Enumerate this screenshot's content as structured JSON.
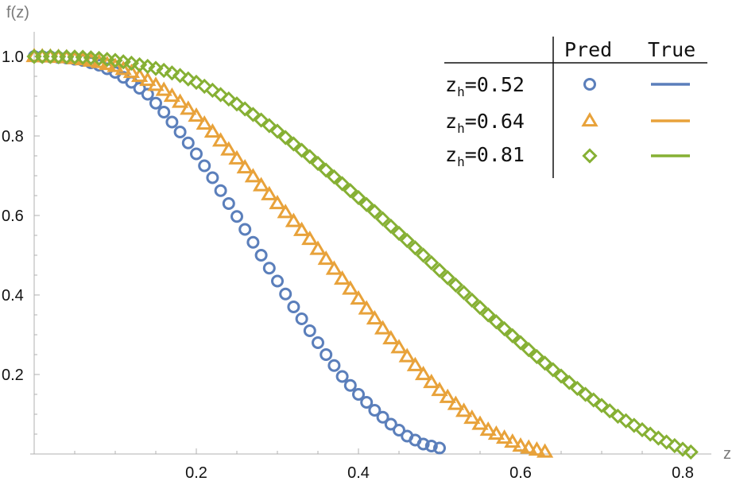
{
  "chart_data": {
    "type": "scatter",
    "xlabel": "z",
    "ylabel": "f(z)",
    "xlim": [
      0,
      0.82
    ],
    "ylim": [
      0,
      1.0
    ],
    "xticks": [
      0.2,
      0.4,
      0.6,
      0.8
    ],
    "xtick_labels": [
      "0.2",
      "0.4",
      "0.6",
      "0.8"
    ],
    "yticks": [
      0.2,
      0.4,
      0.6,
      0.8,
      1.0
    ],
    "ytick_labels": [
      "0.2",
      "0.4",
      "0.6",
      "0.8",
      "1.0"
    ],
    "grid": false,
    "legend": {
      "placement": "top-right",
      "header_pred": "Pred",
      "header_true": "True",
      "row_prefix": "z",
      "row_sub": "h",
      "rows": [
        "=0.52",
        "=0.64",
        "=0.81"
      ]
    },
    "series": [
      {
        "zh": 0.52,
        "marker": "circle",
        "color": "#5b7fbb",
        "x": [
          0.0,
          0.02,
          0.04,
          0.06,
          0.08,
          0.1,
          0.12,
          0.14,
          0.16,
          0.18,
          0.2,
          0.22,
          0.24,
          0.26,
          0.28,
          0.3,
          0.32,
          0.34,
          0.36,
          0.38,
          0.4,
          0.42,
          0.44,
          0.46,
          0.48,
          0.5
        ],
        "y": [
          1.0,
          0.999,
          0.996,
          0.99,
          0.978,
          0.96,
          0.935,
          0.905,
          0.86,
          0.81,
          0.755,
          0.695,
          0.63,
          0.565,
          0.5,
          0.435,
          0.37,
          0.31,
          0.25,
          0.195,
          0.15,
          0.11,
          0.075,
          0.045,
          0.025,
          0.015
        ]
      },
      {
        "zh": 0.64,
        "marker": "triangle",
        "color": "#e8a23a",
        "x": [
          0.0,
          0.02,
          0.04,
          0.06,
          0.08,
          0.1,
          0.12,
          0.14,
          0.16,
          0.18,
          0.2,
          0.22,
          0.24,
          0.26,
          0.28,
          0.3,
          0.32,
          0.34,
          0.36,
          0.38,
          0.4,
          0.42,
          0.44,
          0.46,
          0.48,
          0.5,
          0.52,
          0.54,
          0.56,
          0.58,
          0.6,
          0.62,
          0.63
        ],
        "y": [
          1.0,
          0.999,
          0.997,
          0.992,
          0.985,
          0.975,
          0.96,
          0.94,
          0.915,
          0.885,
          0.85,
          0.81,
          0.765,
          0.72,
          0.675,
          0.63,
          0.585,
          0.54,
          0.49,
          0.44,
          0.39,
          0.34,
          0.29,
          0.245,
          0.2,
          0.16,
          0.125,
          0.09,
          0.06,
          0.04,
          0.02,
          0.01,
          0.005
        ]
      },
      {
        "zh": 0.81,
        "marker": "diamond",
        "color": "#86b034",
        "x": [
          0.0,
          0.02,
          0.04,
          0.06,
          0.08,
          0.1,
          0.12,
          0.14,
          0.16,
          0.18,
          0.2,
          0.22,
          0.24,
          0.26,
          0.28,
          0.3,
          0.32,
          0.34,
          0.36,
          0.38,
          0.4,
          0.42,
          0.44,
          0.46,
          0.48,
          0.5,
          0.52,
          0.54,
          0.56,
          0.58,
          0.6,
          0.62,
          0.64,
          0.66,
          0.68,
          0.7,
          0.72,
          0.74,
          0.76,
          0.78,
          0.8,
          0.81
        ],
        "y": [
          1.0,
          1.0,
          0.999,
          0.998,
          0.995,
          0.99,
          0.983,
          0.975,
          0.965,
          0.952,
          0.935,
          0.915,
          0.893,
          0.868,
          0.84,
          0.812,
          0.78,
          0.748,
          0.714,
          0.68,
          0.645,
          0.61,
          0.573,
          0.537,
          0.5,
          0.462,
          0.425,
          0.387,
          0.35,
          0.315,
          0.28,
          0.245,
          0.212,
          0.18,
          0.15,
          0.122,
          0.095,
          0.072,
          0.05,
          0.03,
          0.012,
          0.005
        ]
      }
    ]
  }
}
